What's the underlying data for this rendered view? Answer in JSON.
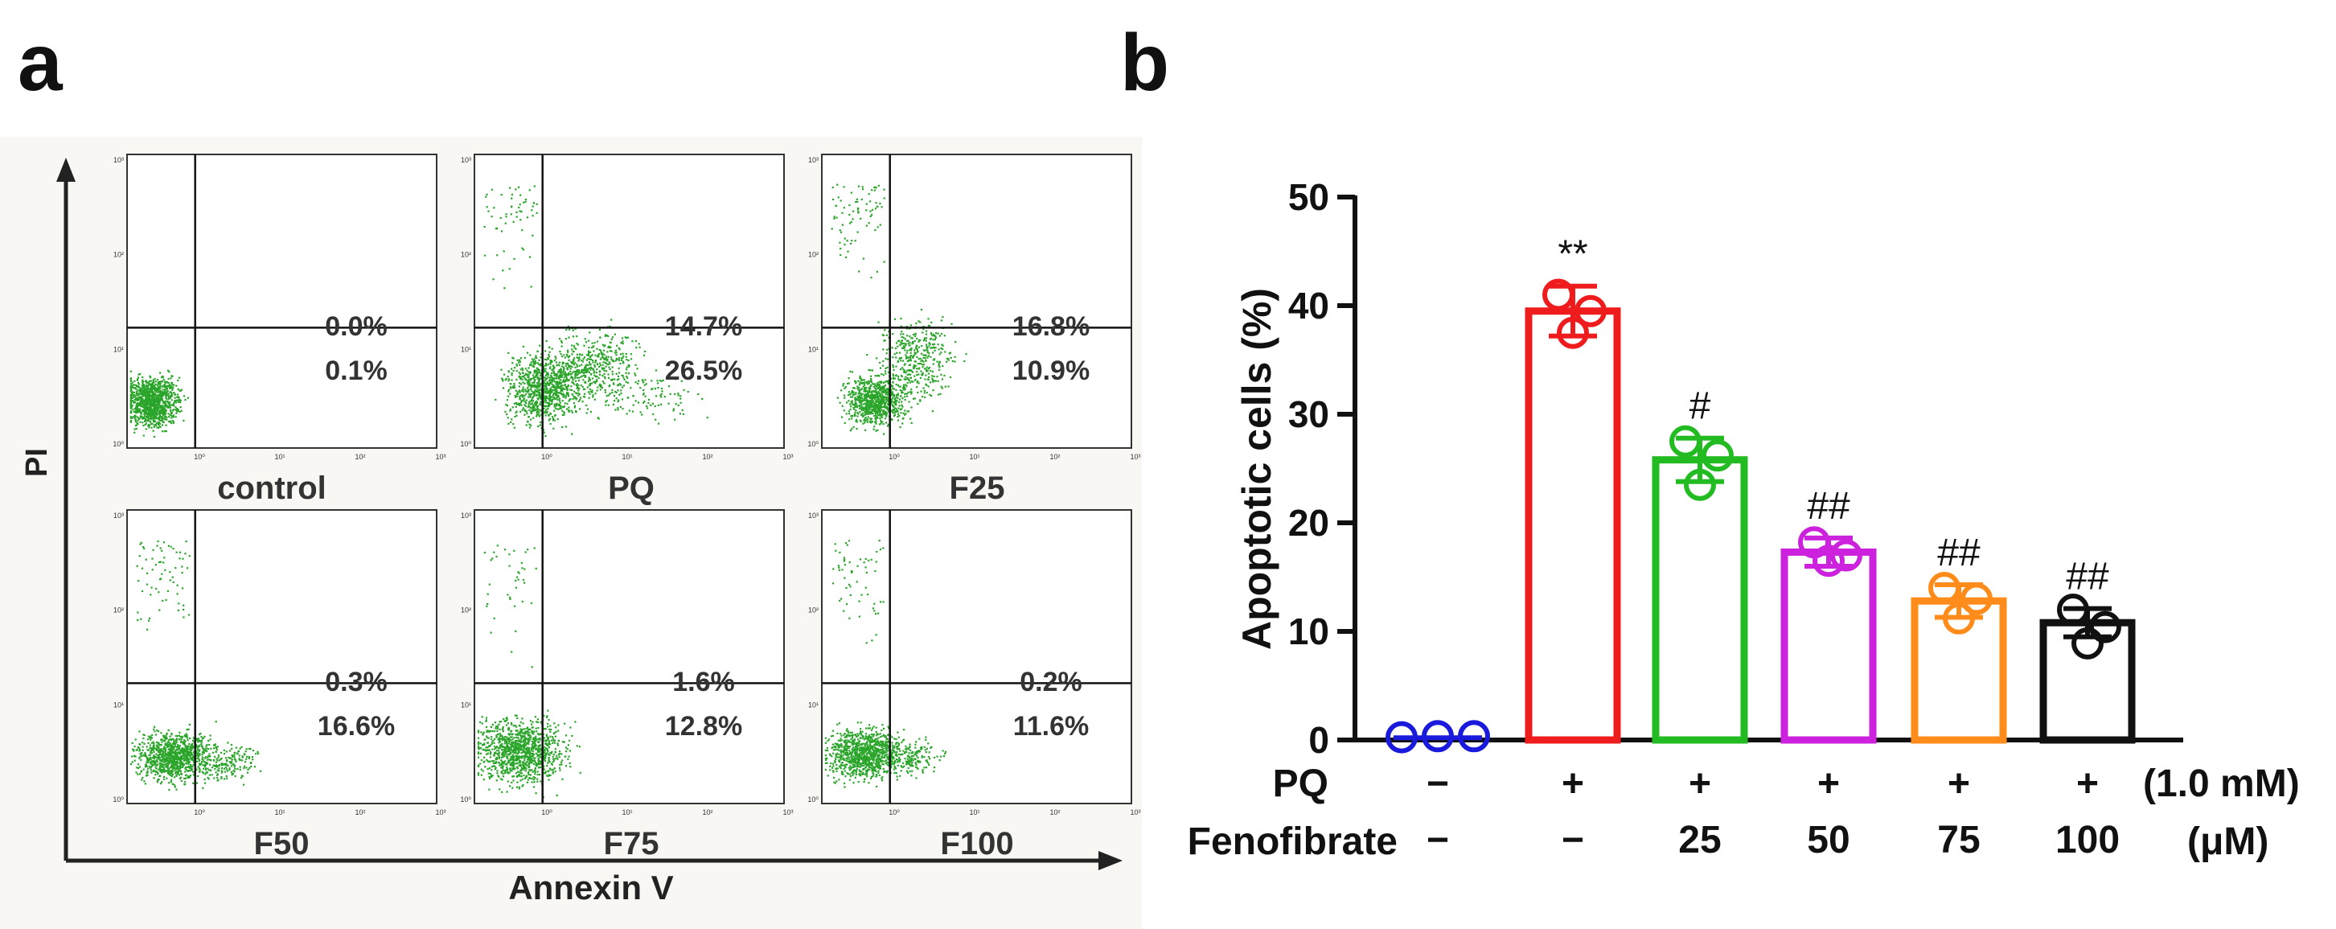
{
  "panel_a": {
    "label": "a",
    "y_axis_label": "PI",
    "x_axis_label": "Annexin V",
    "tick_labels": {
      "x": [
        "10⁰",
        "10¹",
        "10²",
        "10³"
      ],
      "y": [
        "10⁰",
        "10¹",
        "10²",
        "10³"
      ]
    },
    "dot_color": "#2aa52a",
    "plots": [
      {
        "name": "control",
        "upper_right": "0.0%",
        "lower_right": "0.1%"
      },
      {
        "name": "PQ",
        "upper_right": "14.7%",
        "lower_right": "26.5%"
      },
      {
        "name": "F25",
        "upper_right": "16.8%",
        "lower_right": "10.9%"
      },
      {
        "name": "F50",
        "upper_right": "0.3%",
        "lower_right": "16.6%"
      },
      {
        "name": "F75",
        "upper_right": "1.6%",
        "lower_right": "12.8%"
      },
      {
        "name": "F100",
        "upper_right": "0.2%",
        "lower_right": "11.6%"
      }
    ]
  },
  "chart_data": {
    "type": "bar",
    "panel_label": "b",
    "ylabel": "Apoptotic cells (%)",
    "ylim": [
      0,
      50
    ],
    "yticks": [
      0,
      10,
      20,
      30,
      40,
      50
    ],
    "categories": [
      "control",
      "PQ",
      "PQ+F25",
      "PQ+F50",
      "PQ+F75",
      "PQ+F100"
    ],
    "values": [
      0.2,
      39.5,
      25.8,
      17.3,
      12.8,
      10.8
    ],
    "errors": [
      0.2,
      2.3,
      2.0,
      1.3,
      1.5,
      1.3
    ],
    "points": [
      [
        0.1,
        0.2,
        0.2
      ],
      [
        41,
        37.5,
        39.5
      ],
      [
        27.5,
        23.5,
        26.2
      ],
      [
        18.2,
        16.5,
        17.0
      ],
      [
        14.0,
        11.2,
        13.0
      ],
      [
        12.0,
        8.9,
        10.4
      ]
    ],
    "colors": [
      "#1a1adc",
      "#ee1c1c",
      "#22bb22",
      "#cc22dd",
      "#ff8c1a",
      "#111111"
    ],
    "annotations": [
      "",
      "**",
      "#",
      "##",
      "##",
      "##"
    ],
    "row_pq": {
      "label": "PQ",
      "values": [
        "−",
        "+",
        "+",
        "+",
        "+",
        "+"
      ],
      "unit": "(1.0 mM)"
    },
    "row_fenofibrate": {
      "label": "Fenofibrate",
      "values": [
        "−",
        "−",
        "25",
        "50",
        "75",
        "100"
      ],
      "unit": "(μM)"
    }
  }
}
